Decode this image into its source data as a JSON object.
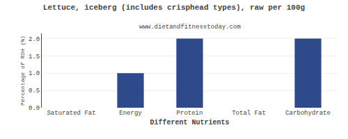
{
  "chart_data": {
    "type": "bar",
    "title": "Lettuce, iceberg (includes crisphead types), raw per 100g",
    "subtitle": "www.dietandfitnesstoday.com",
    "categories": [
      "Saturated Fat",
      "Energy",
      "Protein",
      "Total Fat",
      "Carbohydrate"
    ],
    "values": [
      0.0,
      1.0,
      2.0,
      0.0,
      2.0
    ],
    "color": "#2e4a8a",
    "xlabel": "Different Nutrients",
    "ylabel": "Percentage of RDH (%)",
    "ylim": [
      0,
      2.15
    ],
    "yticks": [
      {
        "value": 0.0,
        "label": "0.0"
      },
      {
        "value": 0.5,
        "label": "0.5"
      },
      {
        "value": 1.0,
        "label": "1.0"
      },
      {
        "value": 1.5,
        "label": "1.5"
      },
      {
        "value": 2.0,
        "label": "2.0"
      }
    ],
    "grid": true
  }
}
